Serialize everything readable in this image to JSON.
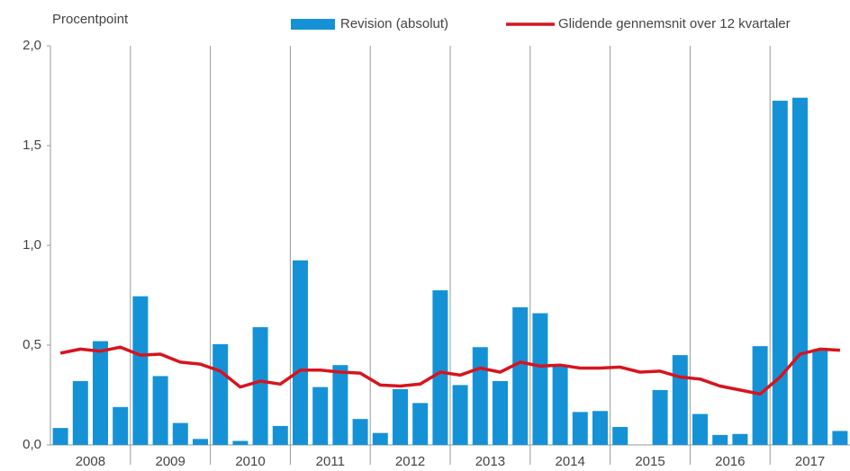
{
  "chart_data": {
    "type": "bar_line",
    "y_label": "Procentpoint",
    "groups": [
      "2008",
      "2009",
      "2010",
      "2011",
      "2012",
      "2013",
      "2014",
      "2015",
      "2016",
      "2017"
    ],
    "categories": [
      null,
      null,
      null,
      null,
      null,
      null,
      null,
      null,
      null,
      null,
      null,
      null,
      null,
      null,
      null,
      null,
      null,
      null,
      null,
      null,
      null,
      null,
      null,
      null,
      null,
      null,
      null,
      null,
      null,
      null,
      null,
      null,
      null,
      null,
      null,
      null,
      null,
      null,
      null,
      null
    ],
    "series": [
      {
        "name": "Revision (absolut)",
        "type": "bar",
        "color": "#1592d6",
        "values": [
          0.085,
          0.32,
          0.52,
          0.19,
          0.745,
          0.345,
          0.11,
          0.03,
          0.505,
          0.02,
          0.59,
          0.095,
          0.925,
          0.29,
          0.4,
          0.13,
          0.06,
          0.28,
          0.21,
          0.775,
          0.3,
          0.49,
          0.32,
          0.69,
          0.66,
          0.4,
          0.165,
          0.17,
          0.09,
          0,
          0.275,
          0.45,
          0.155,
          0.05,
          0.055,
          0.495,
          1.725,
          1.74,
          0.48,
          0.07
        ]
      },
      {
        "name": "Glidende gennemsnit over 12 kvartaler",
        "type": "line",
        "color": "#d7141e",
        "values": [
          0.46,
          0.48,
          0.47,
          0.49,
          0.45,
          0.455,
          0.415,
          0.405,
          0.37,
          0.29,
          0.32,
          0.305,
          0.375,
          0.375,
          0.365,
          0.36,
          0.3,
          0.295,
          0.305,
          0.365,
          0.35,
          0.385,
          0.365,
          0.415,
          0.395,
          0.4,
          0.385,
          0.385,
          0.39,
          0.365,
          0.37,
          0.34,
          0.33,
          0.295,
          0.275,
          0.255,
          0.34,
          0.455,
          0.48,
          0.475
        ]
      }
    ],
    "ylim": [
      0,
      2
    ],
    "yticks": [
      {
        "value": 0,
        "label": "0,0"
      },
      {
        "value": 0.5,
        "label": "0,5"
      },
      {
        "value": 1,
        "label": "1,0"
      },
      {
        "value": 1.5,
        "label": "1,5"
      },
      {
        "value": 2,
        "label": "2,0"
      }
    ]
  }
}
